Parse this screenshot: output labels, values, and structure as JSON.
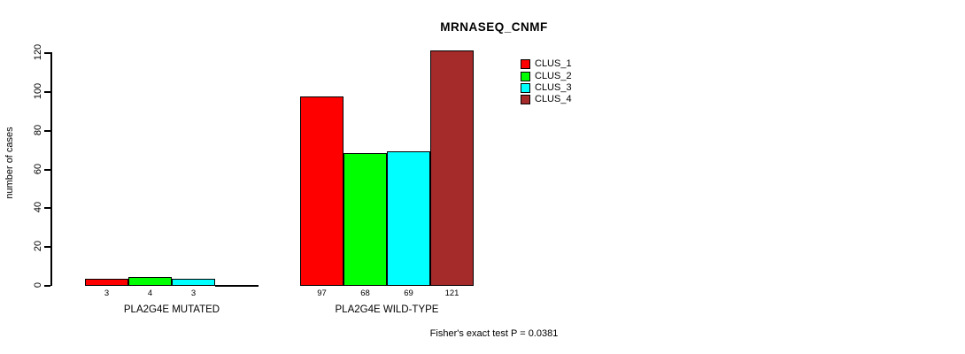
{
  "chart_data": {
    "type": "bar",
    "title": "MRNASEQ_CNMF",
    "ylabel": "number of cases",
    "xlabel": "",
    "ylim": [
      0,
      120
    ],
    "yticks": [
      0,
      20,
      40,
      60,
      80,
      100,
      120
    ],
    "grid": false,
    "legend_position": "top-right",
    "series": [
      "CLUS_1",
      "CLUS_2",
      "CLUS_3",
      "CLUS_4"
    ],
    "colors": [
      "#FF0000",
      "#00FF00",
      "#00FFFF",
      "#A52A2A"
    ],
    "groups": [
      {
        "label": "PLA2G4E MUTATED",
        "values": [
          3,
          4,
          3,
          0
        ]
      },
      {
        "label": "PLA2G4E WILD-TYPE",
        "values": [
          97,
          68,
          69,
          121
        ]
      }
    ],
    "bar_value_labels": [
      [
        "3",
        "4",
        "3",
        ""
      ],
      [
        "97",
        "68",
        "69",
        "121"
      ]
    ],
    "annotation": "Fisher's exact test P = 0.0381"
  }
}
